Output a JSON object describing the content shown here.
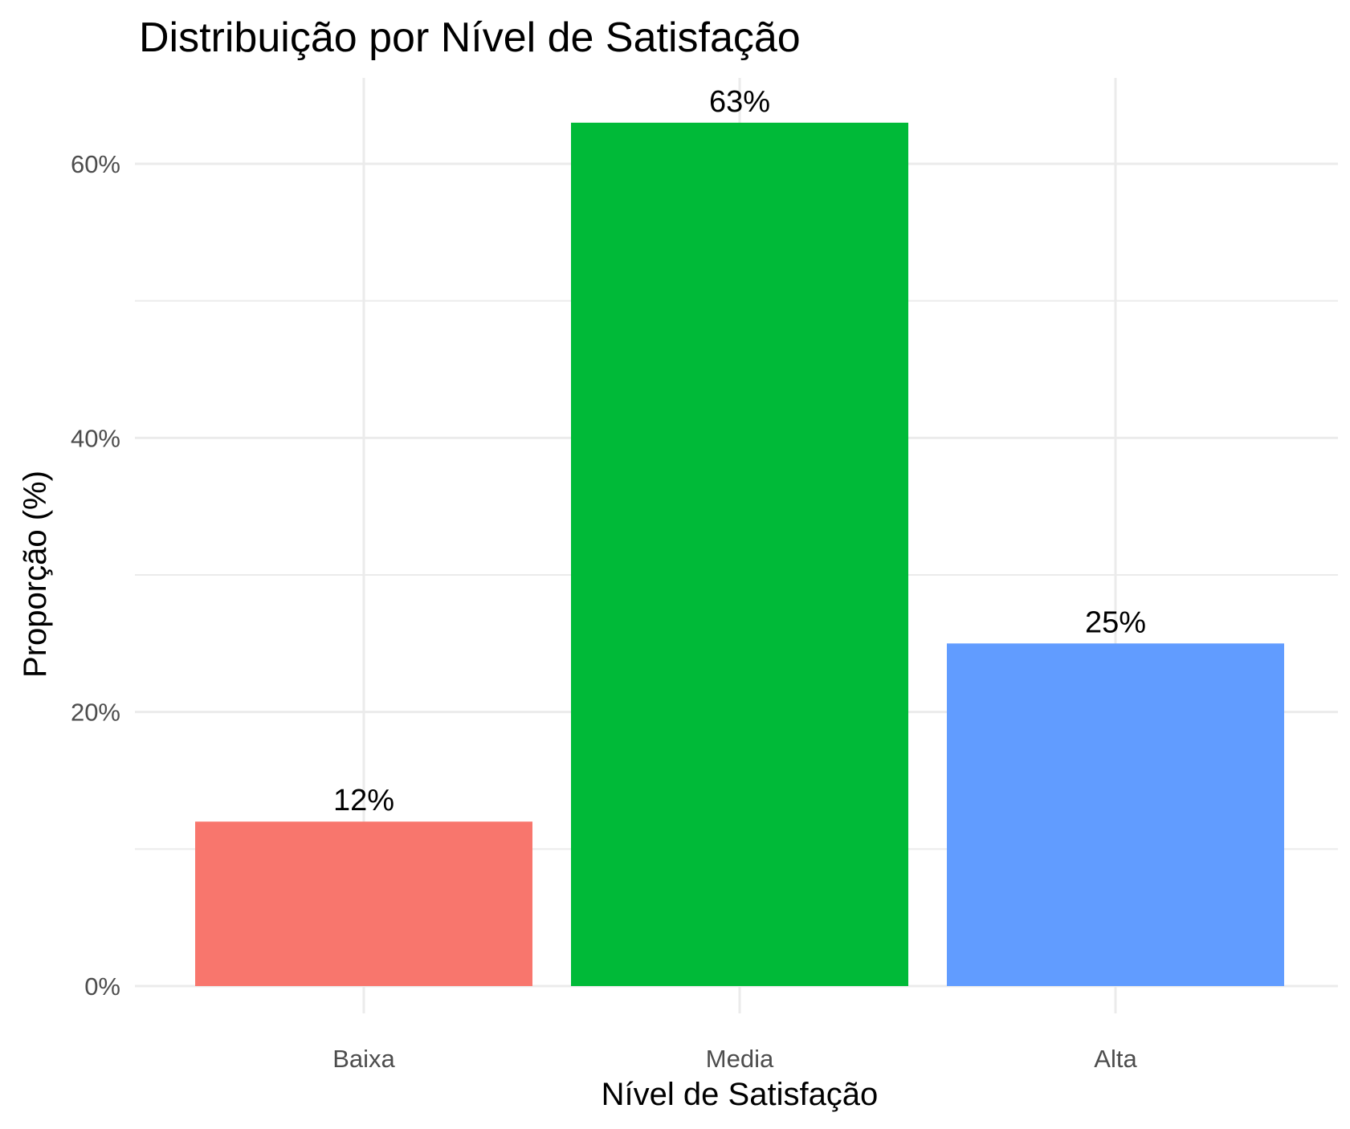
{
  "chart_data": {
    "type": "bar",
    "title": "Distribuição por Nível de Satisfação",
    "xlabel": "Nível de Satisfação",
    "ylabel": "Proporção (%)",
    "categories": [
      "Baixa",
      "Media",
      "Alta"
    ],
    "values": [
      12,
      63,
      25
    ],
    "data_labels": [
      "12%",
      "63%",
      "25%"
    ],
    "colors": [
      "#F8766D",
      "#00BA38",
      "#619CFF"
    ],
    "ylim": [
      0,
      66
    ],
    "y_ticks": [
      0,
      20,
      40,
      60
    ],
    "y_tick_labels": [
      "0%",
      "20%",
      "40%",
      "60%"
    ],
    "y_minor_ticks": [
      10,
      30,
      50
    ],
    "grid": true,
    "legend": "none"
  }
}
